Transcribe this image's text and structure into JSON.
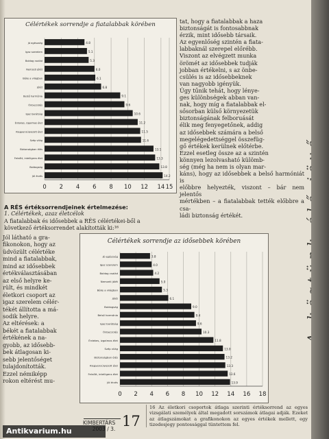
{
  "chart_data": [
    {
      "type": "bar",
      "title": "Célértékek sorrendje a fiatalabbak körében",
      "categories": [
        "Jó egészség",
        "Igaz szerelem",
        "Boldog család",
        "Nemzeti jólét",
        "Béke a világban",
        "Jólét",
        "Belső harmónia",
        "Önbecsülés",
        "Igaz barátság",
        "Érdekes, izgalmas élet",
        "Kiegyensúlyozott élet",
        "Szép világ",
        "Biztonságban élés",
        "Felnőtt, intelligens élet",
        "Boldogság",
        "Jól érzés"
      ],
      "values": [
        4.8,
        5.1,
        5.3,
        6.0,
        6.1,
        6.8,
        9.1,
        9.6,
        10.6,
        11.2,
        11.5,
        11.6,
        13.1,
        13.3,
        13.8,
        14.2
      ],
      "xlim": [
        0,
        15
      ],
      "xticks": [
        0,
        2,
        4,
        6,
        8,
        10,
        12,
        14,
        15
      ],
      "grid": true
    },
    {
      "type": "bar",
      "title": "Célértékek sorrendje az idősebbek körében",
      "categories": [
        "Jó egészség",
        "Igaz szerelem",
        "Boldog család",
        "Nemzeti jólét",
        "Béke a világban",
        "Jólét",
        "Boldogság",
        "Belső harmónia",
        "Igaz barátság",
        "Önbecsülés",
        "Érdekes, izgalmas élet",
        "Szép világ",
        "Biztonságban élés",
        "Kiegyensúlyozott élet",
        "Felnőtt, intelligens élet",
        "Jól érzés"
      ],
      "values": [
        3.8,
        4.0,
        4.2,
        5.0,
        5.3,
        6.1,
        9.0,
        9.4,
        9.6,
        10.3,
        11.8,
        13.0,
        13.2,
        13.3,
        13.6,
        13.9
      ],
      "xlim": [
        0,
        18
      ],
      "xticks": [
        0,
        2,
        4,
        6,
        8,
        10,
        12,
        14,
        16,
        18
      ],
      "grid": true
    }
  ],
  "right_column": {
    "lines": [
      "tat, hogy a fiatalabbak a haza",
      "biztonságát is fontosabbnak",
      "érzik, mint idősebb társaik.",
      "Az egyenlőség szintén a fiata-",
      "labbaknál szerepel előrébb.",
      "Viszont az elvégzett munka",
      "örömét az idősebbek tudják",
      "jobban értékelni, s az önbe-",
      "csülés is az idősebbeknek",
      "van nagyobb igényük.",
      "Úgy tűnik tehát, hogy lénye-",
      "ges különbségek abban van-",
      "nak, hogy míg a fiatalabbak el-",
      "sősorban külső környezetük",
      "biztonságának felboruását",
      "élik meg fenyegetőnek, addig",
      "az idősebbek számára a belső",
      "megelégedettséggel összefüg-",
      "gő értékek kerülnek előtérbe.",
      "Ezzel esetleg össze az a szintén",
      "könnyen lezolvasható külömb-",
      "ség (még ha nem is olyan mar-",
      "káns), hogy az idősebbek a belső harmóniát is",
      "előbbre helyezték, viszont – bár nem jelentős",
      "mértékben – a fiatalabbak tették előbbre a csa-",
      "ládi biztonság értékét."
    ]
  },
  "section": {
    "heading": "A RÉS értéksorrendjeinek értelmezése:",
    "subheading": "1. Célértékek, azaz életcélok",
    "intro": "A fiatalabbak és idősebbek a RÉS célértékei-ből a következő értéksorrendet alakították ki:¹⁶",
    "left_lines": [
      "Jól látható a gra-",
      "fikonokon, hogy az",
      "üdvözült célértéke",
      "mind a fiatalabbak,",
      "mind az idősebbek",
      "értékválasztásában",
      "az első helyre ke-",
      "rült, és mindkét",
      "életkori csoport az",
      "igaz szerelem célér-",
      "tékét állította a má-",
      "sodik helyre.",
      "Az eltérések: a",
      "békét a fiatalabbak",
      "értékének a na-",
      "gyobb, az idősebb-",
      "bek átlagosan ki-",
      "sebb jelentőséget",
      "tulajdonították.",
      "Ezzel némiképp",
      "rokon eltérést mu-"
    ]
  },
  "vertical_title": "A köztünk élő jövő",
  "footer": {
    "magazine": "KIMBERTÁRS",
    "issue": "2003 / 3.",
    "page_number": "17"
  },
  "footnote": "16 Az életkori csoportok átlaga szerinti értéksorrend az egyes vizsgálati személyek által megadott sorszámok átlagai adják. Ezeket az átlagszámokat a grafikonokon az egyes értékek mellett, egy tizedesjegy pontossággal tüntettem fel.",
  "watermark": "Antikvarium.hu"
}
